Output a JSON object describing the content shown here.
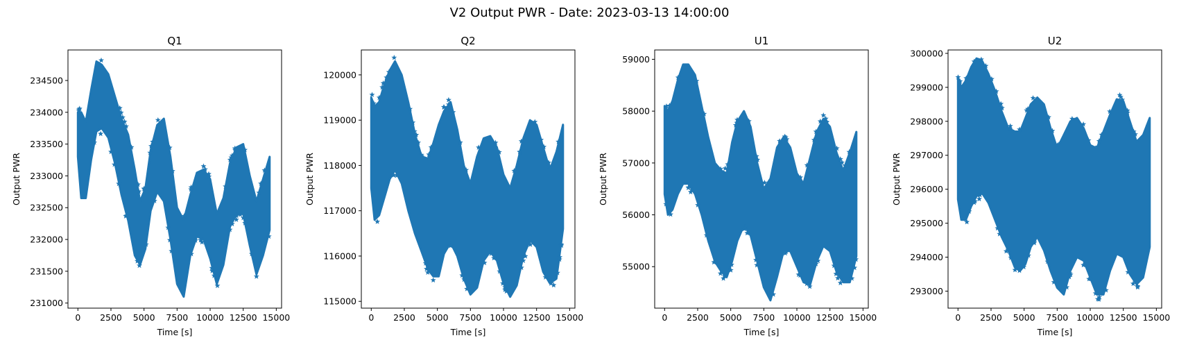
{
  "figure": {
    "suptitle": "V2 Output PWR - Date: 2023-03-13 14:00:00",
    "marker": "star",
    "colors": {
      "series": "#1f77b4",
      "axes": "#000000",
      "background": "#ffffff"
    }
  },
  "chart_data": [
    {
      "type": "scatter",
      "title": "Q1",
      "xlabel": "Time [s]",
      "ylabel": "Output PWR",
      "xlim": [
        -750,
        15400
      ],
      "ylim": [
        230920,
        234980
      ],
      "xticks": [
        0,
        2500,
        5000,
        7500,
        10000,
        12500,
        15000
      ],
      "xtick_labels": [
        "0",
        "2500",
        "5000",
        "7500",
        "10000",
        "12500",
        "15000"
      ],
      "yticks": [
        231000,
        231500,
        232000,
        232500,
        233000,
        233500,
        234000,
        234500
      ],
      "ytick_labels": [
        "231000",
        "231500",
        "232000",
        "232500",
        "233000",
        "233500",
        "234000",
        "234500"
      ],
      "grid": false,
      "series": [
        {
          "x": [
            0,
            250,
            600,
            1000,
            1400,
            1800,
            2300,
            2800,
            3300,
            3800,
            4300,
            4700,
            5100,
            5500,
            6000,
            6500,
            7000,
            7500,
            8000,
            8500,
            9000,
            9500,
            10000,
            10500,
            11000,
            11500,
            12000,
            12500,
            13000,
            13500,
            14000,
            14500
          ],
          "y_upper": [
            234000,
            234000,
            233850,
            234350,
            234800,
            234750,
            234600,
            234250,
            233900,
            233650,
            233100,
            232600,
            232800,
            233400,
            233800,
            233900,
            233300,
            232500,
            232300,
            232700,
            233050,
            233100,
            232950,
            232400,
            232650,
            233200,
            233450,
            233500,
            233000,
            232600,
            232950,
            233300
          ],
          "y_lower": [
            233300,
            232650,
            232650,
            233250,
            233700,
            233750,
            233600,
            233200,
            232700,
            232300,
            231750,
            231600,
            231850,
            232450,
            232750,
            232600,
            232000,
            231300,
            231100,
            231750,
            232050,
            232000,
            231700,
            231300,
            231600,
            232200,
            232400,
            232400,
            231900,
            231450,
            231750,
            232150
          ]
        }
      ]
    },
    {
      "type": "scatter",
      "title": "Q2",
      "xlabel": "Time [s]",
      "ylabel": "Output PWR",
      "xlim": [
        -750,
        15400
      ],
      "ylim": [
        114850,
        120550
      ],
      "xticks": [
        0,
        2500,
        5000,
        7500,
        10000,
        12500,
        15000
      ],
      "xtick_labels": [
        "0",
        "2500",
        "5000",
        "7500",
        "10000",
        "12500",
        "15000"
      ],
      "yticks": [
        115000,
        116000,
        117000,
        118000,
        119000,
        120000
      ],
      "ytick_labels": [
        "115000",
        "116000",
        "117000",
        "118000",
        "119000",
        "120000"
      ],
      "grid": false,
      "series": [
        {
          "x": [
            0,
            250,
            600,
            1000,
            1400,
            1800,
            2300,
            2800,
            3300,
            3800,
            4300,
            4700,
            5100,
            5500,
            6000,
            6500,
            7000,
            7500,
            8000,
            8500,
            9000,
            9500,
            10000,
            10500,
            11000,
            11500,
            12000,
            12500,
            13000,
            13500,
            14000,
            14500
          ],
          "y_upper": [
            119500,
            119300,
            119400,
            119800,
            120100,
            120300,
            120000,
            119400,
            118700,
            118200,
            118150,
            118500,
            118900,
            119200,
            119400,
            118800,
            118000,
            117600,
            118200,
            118600,
            118650,
            118400,
            117800,
            117500,
            118000,
            118600,
            119000,
            118900,
            118400,
            117900,
            118300,
            118900
          ],
          "y_lower": [
            117500,
            116800,
            116900,
            117300,
            117700,
            117900,
            117600,
            117000,
            116500,
            116100,
            115700,
            115550,
            115550,
            116050,
            116300,
            116000,
            115500,
            115150,
            115300,
            115900,
            116100,
            115900,
            115400,
            115100,
            115350,
            116000,
            116350,
            116200,
            115650,
            115400,
            115500,
            116600
          ]
        }
      ]
    },
    {
      "type": "scatter",
      "title": "U1",
      "xlabel": "Time [s]",
      "ylabel": "Output PWR",
      "xlim": [
        -750,
        15400
      ],
      "ylim": [
        54200,
        59180
      ],
      "xticks": [
        0,
        2500,
        5000,
        7500,
        10000,
        12500,
        15000
      ],
      "xtick_labels": [
        "0",
        "2500",
        "5000",
        "7500",
        "10000",
        "12500",
        "15000"
      ],
      "yticks": [
        55000,
        56000,
        57000,
        58000,
        59000
      ],
      "ytick_labels": [
        "55000",
        "56000",
        "57000",
        "58000",
        "59000"
      ],
      "grid": false,
      "series": [
        {
          "x": [
            0,
            250,
            600,
            1000,
            1400,
            1800,
            2300,
            2800,
            3300,
            3800,
            4300,
            4700,
            5100,
            5500,
            6000,
            6500,
            7000,
            7500,
            8000,
            8500,
            9000,
            9500,
            10000,
            10500,
            11000,
            11500,
            12000,
            12500,
            13000,
            13500,
            14000,
            14500
          ],
          "y_upper": [
            58100,
            58000,
            58200,
            58600,
            58900,
            58900,
            58700,
            58100,
            57500,
            57000,
            56850,
            56800,
            57400,
            57800,
            58000,
            57700,
            57000,
            56500,
            56700,
            57300,
            57500,
            57300,
            56800,
            56600,
            57100,
            57600,
            57850,
            57700,
            57200,
            56850,
            57200,
            57600
          ],
          "y_lower": [
            56400,
            56000,
            56100,
            56400,
            56600,
            56600,
            56400,
            56000,
            55500,
            55100,
            54900,
            54800,
            55100,
            55500,
            55800,
            55600,
            55100,
            54600,
            54350,
            54800,
            55300,
            55300,
            55000,
            54700,
            54650,
            55100,
            55400,
            55300,
            54900,
            54700,
            54700,
            55200
          ]
        }
      ]
    },
    {
      "type": "scatter",
      "title": "U2",
      "xlabel": "Time [s]",
      "ylabel": "Output PWR",
      "xlim": [
        -750,
        15400
      ],
      "ylim": [
        292500,
        300100
      ],
      "xticks": [
        0,
        2500,
        5000,
        7500,
        10000,
        12500,
        15000
      ],
      "xtick_labels": [
        "0",
        "2500",
        "5000",
        "7500",
        "10000",
        "12500",
        "15000"
      ],
      "yticks": [
        293000,
        294000,
        295000,
        296000,
        297000,
        298000,
        299000,
        300000
      ],
      "ytick_labels": [
        "293000",
        "294000",
        "295000",
        "296000",
        "297000",
        "298000",
        "299000",
        "300000"
      ],
      "grid": false,
      "series": [
        {
          "x": [
            0,
            250,
            600,
            1000,
            1400,
            1800,
            2300,
            2800,
            3300,
            3800,
            4300,
            4700,
            5100,
            5500,
            6000,
            6500,
            7000,
            7500,
            8000,
            8500,
            9000,
            9500,
            10000,
            10500,
            11000,
            11500,
            12000,
            12500,
            13000,
            13500,
            14000,
            14500
          ],
          "y_upper": [
            299300,
            299000,
            299200,
            299600,
            299850,
            299800,
            299400,
            298900,
            298300,
            297800,
            297700,
            297700,
            298100,
            298500,
            298700,
            298500,
            297800,
            297200,
            297600,
            298000,
            298100,
            297800,
            297300,
            297200,
            297700,
            298200,
            298650,
            298600,
            298000,
            297400,
            297600,
            298100
          ],
          "y_lower": [
            295700,
            295100,
            295100,
            295500,
            295800,
            295900,
            295600,
            295100,
            294600,
            294200,
            293700,
            293600,
            293800,
            294300,
            294600,
            294200,
            293600,
            293100,
            292900,
            293600,
            294000,
            293900,
            293400,
            292900,
            292900,
            293600,
            294100,
            294000,
            293500,
            293200,
            293400,
            294300
          ]
        }
      ]
    }
  ]
}
